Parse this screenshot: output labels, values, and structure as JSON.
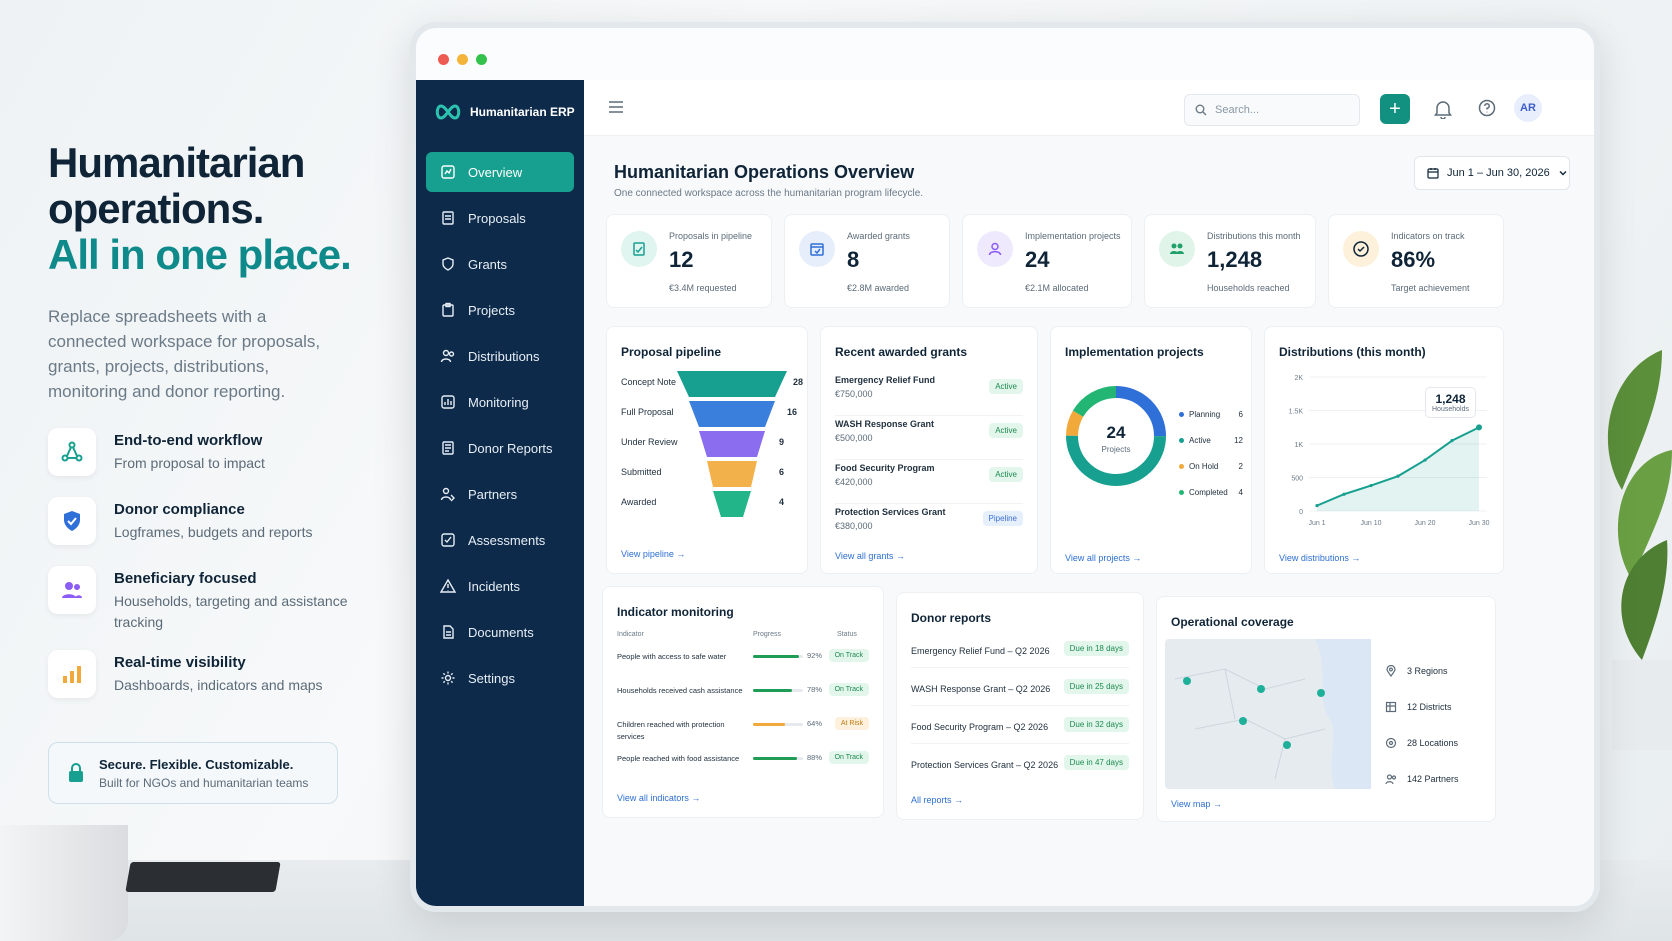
{
  "hero": {
    "line1": "Humanitarian",
    "line2": "operations.",
    "line3": "All in one place.",
    "sub": "Replace spreadsheets with a connected workspace for proposals, grants, projects, distributions, monitoring and donor reporting."
  },
  "features": [
    {
      "title": "End-to-end workflow",
      "desc": "From proposal to impact"
    },
    {
      "title": "Donor compliance",
      "desc": "Logframes, budgets and reports"
    },
    {
      "title": "Beneficiary focused",
      "desc": "Households, targeting and assistance tracking"
    },
    {
      "title": "Real-time visibility",
      "desc": "Dashboards, indicators and maps"
    }
  ],
  "secure": {
    "title": "Secure. Flexible. Customizable.",
    "desc": "Built for NGOs and humanitarian teams"
  },
  "app": {
    "brand": "Humanitarian ERP",
    "search_placeholder": "Search...",
    "avatar": "AR",
    "page_title": "Humanitarian Operations Overview",
    "page_sub": "One connected workspace across the humanitarian program lifecycle.",
    "date_range": "Jun 1 – Jun 30, 2026"
  },
  "nav": [
    "Overview",
    "Proposals",
    "Grants",
    "Projects",
    "Distributions",
    "Monitoring",
    "Donor Reports",
    "Partners",
    "Assessments",
    "Incidents",
    "Documents",
    "Settings"
  ],
  "kpis": [
    {
      "label": "Proposals in pipeline",
      "value": "12",
      "note": "€3.4M requested"
    },
    {
      "label": "Awarded grants",
      "value": "8",
      "note": "€2.8M awarded"
    },
    {
      "label": "Implementation projects",
      "value": "24",
      "note": "€2.1M allocated"
    },
    {
      "label": "Distributions this month",
      "value": "1,248",
      "note": "Households reached"
    },
    {
      "label": "Indicators on track",
      "value": "86%",
      "note": "Target achievement"
    }
  ],
  "pipeline": {
    "title": "Proposal pipeline",
    "stages": [
      {
        "name": "Concept Note",
        "count": "28"
      },
      {
        "name": "Full Proposal",
        "count": "16"
      },
      {
        "name": "Under Review",
        "count": "9"
      },
      {
        "name": "Submitted",
        "count": "6"
      },
      {
        "name": "Awarded",
        "count": "4"
      }
    ],
    "link": "View pipeline →"
  },
  "grants": {
    "title": "Recent awarded grants",
    "items": [
      {
        "name": "Emergency Relief Fund",
        "amount": "€750,000",
        "status": "Active"
      },
      {
        "name": "WASH Response Grant",
        "amount": "€500,000",
        "status": "Active"
      },
      {
        "name": "Food Security Program",
        "amount": "€420,000",
        "status": "Active"
      },
      {
        "name": "Protection Services Grant",
        "amount": "€380,000",
        "status": "Pipeline"
      }
    ],
    "link": "View all grants →"
  },
  "projects": {
    "title": "Implementation projects",
    "center_value": "24",
    "center_label": "Projects",
    "legend": [
      {
        "name": "Planning",
        "value": "6"
      },
      {
        "name": "Active",
        "value": "12"
      },
      {
        "name": "On Hold",
        "value": "2"
      },
      {
        "name": "Completed",
        "value": "4"
      }
    ],
    "link": "View all projects →"
  },
  "distributions": {
    "title": "Distributions (this month)",
    "tooltip_value": "1,248",
    "tooltip_label": "Households",
    "y_ticks": [
      "2K",
      "1.5K",
      "1K",
      "500",
      "0"
    ],
    "x_ticks": [
      "Jun 1",
      "Jun 10",
      "Jun 20",
      "Jun 30"
    ],
    "link": "View distributions →"
  },
  "indicators": {
    "title": "Indicator monitoring",
    "col_indicator": "Indicator",
    "col_progress": "Progress",
    "col_status": "Status",
    "rows": [
      {
        "name": "People with access to safe water",
        "pct": "92%",
        "status": "On Track"
      },
      {
        "name": "Households received cash assistance",
        "pct": "78%",
        "status": "On Track"
      },
      {
        "name": "Children reached with protection services",
        "pct": "64%",
        "status": "At Risk"
      },
      {
        "name": "People reached with food assistance",
        "pct": "88%",
        "status": "On Track"
      }
    ],
    "link": "View all indicators →"
  },
  "reports": {
    "title": "Donor reports",
    "items": [
      {
        "name": "Emergency Relief Fund – Q2 2026",
        "due": "Due in 18 days"
      },
      {
        "name": "WASH Response Grant – Q2 2026",
        "due": "Due in 25 days"
      },
      {
        "name": "Food Security Program – Q2 2026",
        "due": "Due in 32 days"
      },
      {
        "name": "Protection Services Grant – Q2 2026",
        "due": "Due in 47 days"
      }
    ],
    "link": "All reports →"
  },
  "coverage": {
    "title": "Operational coverage",
    "stats": [
      "3 Regions",
      "12 Districts",
      "28 Locations",
      "142 Partners"
    ],
    "link": "View map →"
  },
  "chart_data": [
    {
      "type": "line",
      "title": "Distributions (this month)",
      "x": [
        "Jun 1",
        "Jun 5",
        "Jun 10",
        "Jun 15",
        "Jun 20",
        "Jun 25",
        "Jun 30"
      ],
      "series": [
        {
          "values": [
            80,
            250,
            380,
            520,
            760,
            1050,
            1248
          ]
        }
      ],
      "ylim": [
        0,
        2000
      ]
    },
    {
      "type": "pie",
      "title": "Implementation projects",
      "categories": [
        "Planning",
        "Active",
        "On Hold",
        "Completed"
      ],
      "values": [
        6,
        12,
        2,
        4
      ]
    }
  ],
  "colors": {
    "primary": "#0d2a4a",
    "accent": "#17a08f",
    "blue": "#2f6fd8",
    "amber": "#f2a93b",
    "green": "#22b573"
  }
}
